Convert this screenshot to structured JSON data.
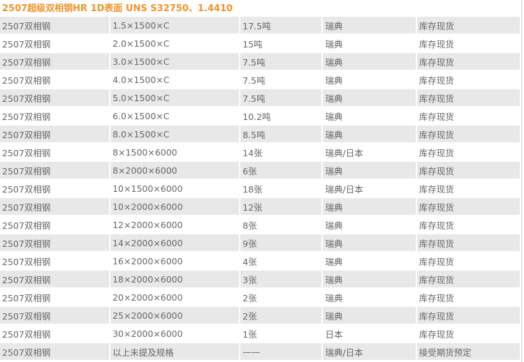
{
  "title": "2507超级双相钢HR 1D表面 UNS S32750、1.4410",
  "rows": [
    [
      "2507双相钢",
      "1.5×1500×C",
      "17.5吨",
      "瑞典",
      "库存现货"
    ],
    [
      "2507双相钢",
      "2.0×1500×C",
      "15吨",
      "瑞典",
      "库存现货"
    ],
    [
      "2507双相钢",
      "3.0×1500×C",
      "7.5吨",
      "瑞典",
      "库存现货"
    ],
    [
      "2507双相钢",
      "4.0×1500×C",
      "7.5吨",
      "瑞典",
      "库存现货"
    ],
    [
      "2507双相钢",
      "5.0×1500×C",
      "7.5吨",
      "瑞典",
      "库存现货"
    ],
    [
      "2507双相钢",
      "6.0×1500×C",
      "10.2吨",
      "瑞典",
      "库存现货"
    ],
    [
      "2507双相钢",
      "8.0×1500×C",
      "8.5吨",
      "瑞典",
      "库存现货"
    ],
    [
      "2507双相钢",
      "8×1500×6000",
      "14张",
      "瑞典/日本",
      "库存现货"
    ],
    [
      "2507双相钢",
      "8×2000×6000",
      "6张",
      "瑞典",
      "库存现货"
    ],
    [
      "2507双相钢",
      "10×1500×6000",
      "18张",
      "瑞典/日本",
      "库存现货"
    ],
    [
      "2507双相钢",
      "10×2000×6000",
      "12张",
      "瑞典",
      "库存现货"
    ],
    [
      "2507双相钢",
      "12×2000×6000",
      "8张",
      "瑞典",
      "库存现货"
    ],
    [
      "2507双相钢",
      "14×2000×6000",
      "9张",
      "瑞典",
      "库存现货"
    ],
    [
      "2507双相钢",
      "16×2000×6000",
      "4张",
      "瑞典",
      "库存现货"
    ],
    [
      "2507双相钢",
      "18×2000×6000",
      "3张",
      "瑞典",
      "库存现货"
    ],
    [
      "2507双相钢",
      "20×2000×6000",
      "2张",
      "瑞典",
      "库存现货"
    ],
    [
      "2507双相钢",
      "25×2000×6000",
      "2张",
      "瑞典",
      "库存现货"
    ],
    [
      "2507双相钢",
      "30×2000×6000",
      "1张",
      "日本",
      "库存现货"
    ],
    [
      "2507双相钢",
      "以上未提及规格",
      "——",
      "瑞典/日本",
      "接受期货预定"
    ]
  ]
}
